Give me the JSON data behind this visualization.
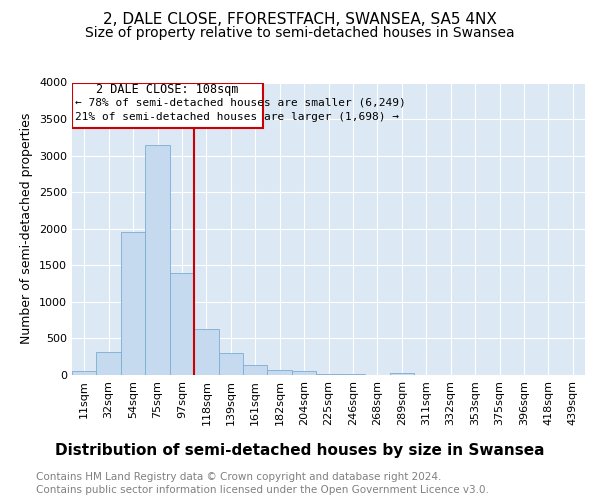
{
  "title": "2, DALE CLOSE, FFORESTFACH, SWANSEA, SA5 4NX",
  "subtitle": "Size of property relative to semi-detached houses in Swansea",
  "xlabel": "Distribution of semi-detached houses by size in Swansea",
  "ylabel": "Number of semi-detached properties",
  "categories": [
    "11sqm",
    "32sqm",
    "54sqm",
    "75sqm",
    "97sqm",
    "118sqm",
    "139sqm",
    "161sqm",
    "182sqm",
    "204sqm",
    "225sqm",
    "246sqm",
    "268sqm",
    "289sqm",
    "311sqm",
    "332sqm",
    "353sqm",
    "375sqm",
    "396sqm",
    "418sqm",
    "439sqm"
  ],
  "values": [
    50,
    320,
    1960,
    3150,
    1400,
    630,
    300,
    140,
    70,
    50,
    15,
    8,
    3,
    30,
    0,
    0,
    0,
    0,
    0,
    0,
    0
  ],
  "bar_color": "#c5d9ef",
  "bar_edge_color": "#7aadd4",
  "vline_x": 4.5,
  "vline_color": "#cc0000",
  "annotation_title": "2 DALE CLOSE: 108sqm",
  "annotation_line1": "← 78% of semi-detached houses are smaller (6,249)",
  "annotation_line2": "21% of semi-detached houses are larger (1,698) →",
  "box_color": "#cc0000",
  "ylim": [
    0,
    4000
  ],
  "yticks": [
    0,
    500,
    1000,
    1500,
    2000,
    2500,
    3000,
    3500,
    4000
  ],
  "footer_line1": "Contains HM Land Registry data © Crown copyright and database right 2024.",
  "footer_line2": "Contains public sector information licensed under the Open Government Licence v3.0.",
  "title_fontsize": 11,
  "subtitle_fontsize": 10,
  "xlabel_fontsize": 11,
  "ylabel_fontsize": 9,
  "tick_fontsize": 8,
  "footer_fontsize": 7.5,
  "plot_bg_color": "#dce9f5"
}
